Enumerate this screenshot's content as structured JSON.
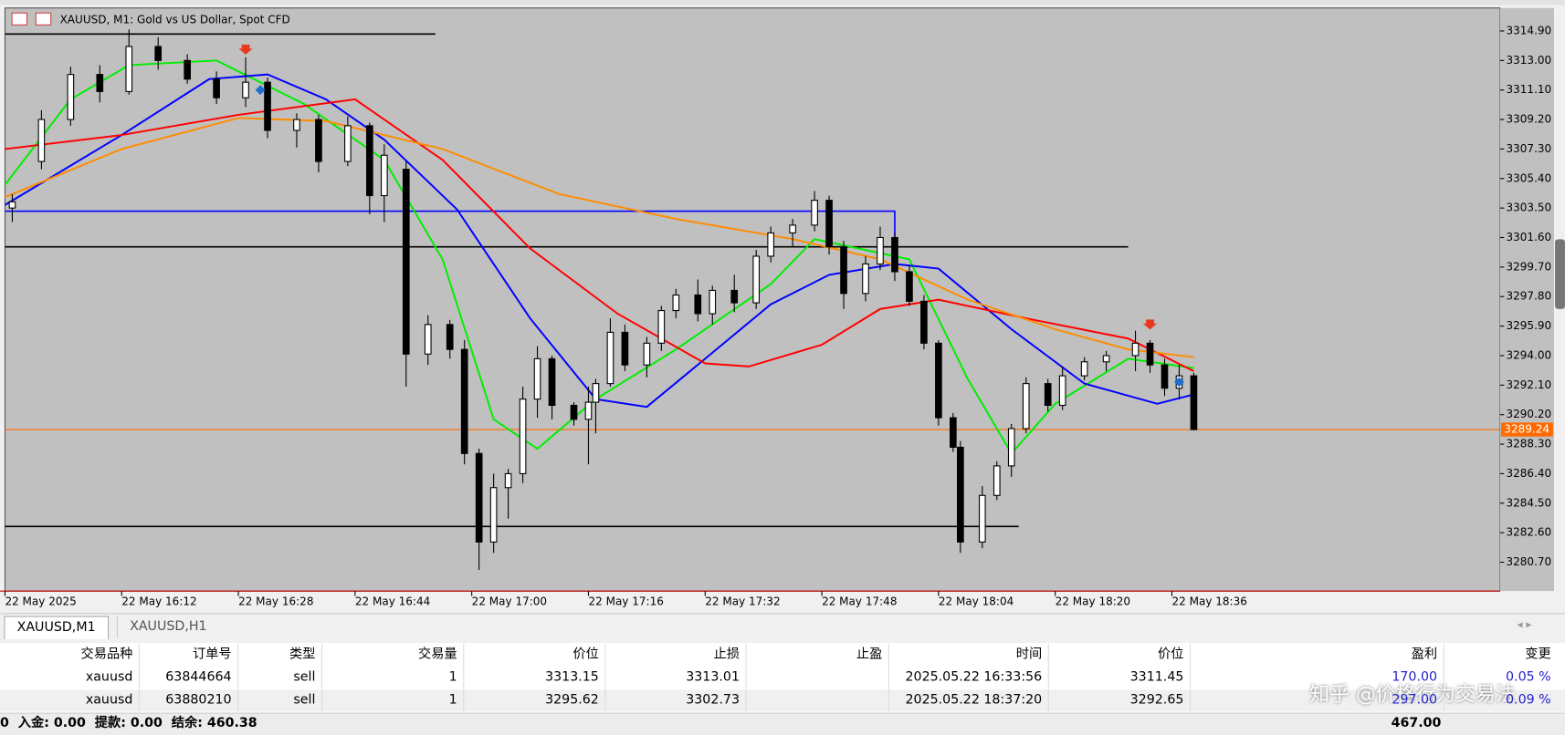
{
  "window": {
    "title": "XAUUSD, M1:  Gold vs US Dollar, Spot CFD"
  },
  "chart_data": {
    "type": "candlestick",
    "x": [
      "22 May 15:57",
      "22 May 16:01",
      "22 May 16:05",
      "22 May 16:09",
      "22 May 16:13",
      "22 May 16:17",
      "22 May 16:21",
      "22 May 16:25",
      "22 May 16:29",
      "22 May 16:32",
      "22 May 16:36",
      "22 May 16:39",
      "22 May 16:43",
      "22 May 16:46",
      "22 May 16:48",
      "22 May 16:51",
      "22 May 16:54",
      "22 May 16:57",
      "22 May 16:59",
      "22 May 17:01",
      "22 May 17:03",
      "22 May 17:05",
      "22 May 17:07",
      "22 May 17:09",
      "22 May 17:11",
      "22 May 17:14",
      "22 May 17:16",
      "22 May 17:17",
      "22 May 17:19",
      "22 May 17:21",
      "22 May 17:24",
      "22 May 17:26",
      "22 May 17:28",
      "22 May 17:31",
      "22 May 17:33",
      "22 May 17:36",
      "22 May 17:39",
      "22 May 17:41",
      "22 May 17:44",
      "22 May 17:47",
      "22 May 17:49",
      "22 May 17:51",
      "22 May 17:54",
      "22 May 17:56",
      "22 May 17:58",
      "22 May 18:00",
      "22 May 18:02",
      "22 May 18:04",
      "22 May 18:06",
      "22 May 18:07",
      "22 May 18:10",
      "22 May 18:12",
      "22 May 18:14",
      "22 May 18:16",
      "22 May 18:19",
      "22 May 18:21",
      "22 May 18:24",
      "22 May 18:27",
      "22 May 18:31",
      "22 May 18:33",
      "22 May 18:35",
      "22 May 18:37",
      "22 May 18:39"
    ],
    "open": [
      3303.5,
      3306.5,
      3309.2,
      3312.1,
      3311.0,
      3313.9,
      3313.0,
      3311.8,
      3310.6,
      3311.6,
      3308.5,
      3309.2,
      3306.5,
      3308.8,
      3304.3,
      3306.0,
      3294.1,
      3296.0,
      3294.4,
      3287.7,
      3282.0,
      3285.5,
      3286.4,
      3291.2,
      3293.8,
      3290.8,
      3289.9,
      3291.0,
      3292.2,
      3295.5,
      3293.4,
      3294.8,
      3296.9,
      3297.9,
      3296.7,
      3298.2,
      3297.4,
      3300.4,
      3301.9,
      3302.4,
      3304.0,
      3301.0,
      3298.0,
      3299.9,
      3301.6,
      3299.4,
      3297.5,
      3294.8,
      3290.0,
      3288.1,
      3282.0,
      3285.0,
      3286.9,
      3289.3,
      3292.2,
      3290.8,
      3292.7,
      3293.6,
      3294.0,
      3294.8,
      3293.4,
      3291.9,
      3292.7
    ],
    "high": [
      3304.4,
      3309.8,
      3312.6,
      3312.7,
      3315.0,
      3314.5,
      3313.4,
      3312.3,
      3313.2,
      3311.9,
      3309.6,
      3309.5,
      3309.4,
      3309.0,
      3307.6,
      3306.5,
      3296.6,
      3296.3,
      3295.0,
      3288.0,
      3286.4,
      3286.7,
      3292.0,
      3294.6,
      3294.0,
      3291.0,
      3292.0,
      3292.5,
      3296.4,
      3296.0,
      3295.2,
      3297.2,
      3298.3,
      3298.9,
      3298.5,
      3299.2,
      3300.8,
      3302.3,
      3302.8,
      3304.6,
      3304.3,
      3301.4,
      3300.4,
      3302.3,
      3301.9,
      3299.8,
      3297.9,
      3295.0,
      3290.3,
      3288.5,
      3285.6,
      3287.2,
      3289.6,
      3292.6,
      3292.5,
      3293.3,
      3293.9,
      3294.3,
      3295.6,
      3295.0,
      3293.8,
      3293.4,
      3292.9
    ],
    "low": [
      3302.6,
      3306.0,
      3308.8,
      3310.3,
      3310.8,
      3312.4,
      3311.5,
      3310.2,
      3310.0,
      3308.0,
      3307.4,
      3305.8,
      3306.2,
      3303.1,
      3302.6,
      3292.0,
      3293.4,
      3293.8,
      3287.0,
      3280.2,
      3281.3,
      3283.5,
      3285.8,
      3290.0,
      3289.9,
      3289.5,
      3287.0,
      3289.0,
      3292.0,
      3293.0,
      3292.6,
      3294.3,
      3296.4,
      3296.2,
      3296.0,
      3296.8,
      3297.0,
      3300.0,
      3301.0,
      3302.0,
      3300.5,
      3297.0,
      3297.5,
      3299.5,
      3298.8,
      3297.2,
      3294.4,
      3289.5,
      3287.8,
      3281.3,
      3281.6,
      3284.7,
      3286.2,
      3289.0,
      3290.4,
      3290.5,
      3292.4,
      3293.0,
      3293.0,
      3292.9,
      3291.4,
      3291.2,
      3289.2
    ],
    "close": [
      3303.9,
      3309.2,
      3312.1,
      3311.0,
      3313.9,
      3313.0,
      3311.8,
      3310.6,
      3311.6,
      3308.5,
      3309.2,
      3306.5,
      3308.8,
      3304.3,
      3306.9,
      3294.1,
      3296.0,
      3294.4,
      3287.7,
      3282.0,
      3285.5,
      3286.4,
      3291.2,
      3293.8,
      3290.8,
      3289.9,
      3291.0,
      3292.2,
      3295.5,
      3293.4,
      3294.8,
      3296.9,
      3297.9,
      3296.7,
      3298.2,
      3297.4,
      3300.4,
      3301.9,
      3302.4,
      3304.0,
      3301.0,
      3298.0,
      3299.9,
      3301.6,
      3299.4,
      3297.5,
      3294.8,
      3290.0,
      3288.1,
      3282.0,
      3285.0,
      3286.9,
      3289.3,
      3292.2,
      3290.8,
      3292.7,
      3293.6,
      3294.0,
      3294.8,
      3293.4,
      3291.9,
      3292.7,
      3289.24
    ],
    "series": [
      {
        "color": "#00ee00",
        "x": [
          "22 May 15:56",
          "22 May 16:05",
          "22 May 16:13",
          "22 May 16:25",
          "22 May 16:37",
          "22 May 16:48",
          "22 May 16:56",
          "22 May 17:03",
          "22 May 17:09",
          "22 May 17:17",
          "22 May 17:28",
          "22 May 17:41",
          "22 May 17:47",
          "22 May 18:00",
          "22 May 18:08",
          "22 May 18:14",
          "22 May 18:20",
          "22 May 18:30",
          "22 May 18:39"
        ],
        "values": [
          3305.0,
          3310.5,
          3312.7,
          3313.0,
          3310.2,
          3306.6,
          3300.2,
          3289.9,
          3288.0,
          3291.2,
          3294.4,
          3298.6,
          3301.5,
          3300.2,
          3292.5,
          3287.7,
          3290.9,
          3293.8,
          3293.2
        ]
      },
      {
        "color": "#0000ff",
        "x": [
          "22 May 15:56",
          "22 May 16:12",
          "22 May 16:24",
          "22 May 16:32",
          "22 May 16:40",
          "22 May 16:48",
          "22 May 16:58",
          "22 May 17:08",
          "22 May 17:17",
          "22 May 17:24",
          "22 May 17:32",
          "22 May 17:41",
          "22 May 17:49",
          "22 May 17:58",
          "22 May 18:04",
          "22 May 18:14",
          "22 May 18:24",
          "22 May 18:34",
          "22 May 18:39"
        ],
        "values": [
          3303.7,
          3308.2,
          3311.8,
          3312.1,
          3310.5,
          3307.9,
          3303.4,
          3296.4,
          3291.2,
          3290.7,
          3293.8,
          3297.3,
          3299.2,
          3299.9,
          3299.6,
          3295.7,
          3292.2,
          3290.9,
          3291.5
        ]
      },
      {
        "color": "#ff0000",
        "x": [
          "22 May 15:56",
          "22 May 16:12",
          "22 May 16:28",
          "22 May 16:44",
          "22 May 16:56",
          "22 May 17:08",
          "22 May 17:20",
          "22 May 17:32",
          "22 May 17:38",
          "22 May 17:48",
          "22 May 17:56",
          "22 May 18:04",
          "22 May 18:16",
          "22 May 18:30",
          "22 May 18:39"
        ],
        "values": [
          3307.3,
          3308.2,
          3309.5,
          3310.5,
          3306.6,
          3300.9,
          3296.7,
          3293.5,
          3293.3,
          3294.7,
          3297.0,
          3297.6,
          3296.4,
          3295.1,
          3293.0
        ]
      },
      {
        "color": "#ff8c00",
        "x": [
          "22 May 15:56",
          "22 May 16:12",
          "22 May 16:28",
          "22 May 16:40",
          "22 May 16:56",
          "22 May 17:12",
          "22 May 17:28",
          "22 May 17:44",
          "22 May 17:56",
          "22 May 18:08",
          "22 May 18:20",
          "22 May 18:30",
          "22 May 18:39"
        ],
        "values": [
          3304.2,
          3307.3,
          3309.3,
          3309.1,
          3307.3,
          3304.4,
          3302.8,
          3301.5,
          3300.2,
          3297.6,
          3295.7,
          3294.4,
          3293.9
        ]
      }
    ],
    "levels": [
      {
        "value": 3314.7,
        "from": "22 May 15:56",
        "to": "22 May 16:55",
        "color": "#000000"
      },
      {
        "value": 3301.0,
        "from": "22 May 15:56",
        "to": "22 May 18:30",
        "color": "#000000"
      },
      {
        "value": 3283.0,
        "from": "22 May 15:56",
        "to": "22 May 18:15",
        "color": "#000000"
      }
    ],
    "box": {
      "top": 3303.3,
      "bottom": 3301.0,
      "from": "22 May 15:56",
      "to": "22 May 17:58",
      "color": "#0000ff"
    },
    "markers": [
      {
        "x": "22 May 16:29",
        "value": 3313.7,
        "color": "#e8391e",
        "shape": "arrow"
      },
      {
        "x": "22 May 16:31",
        "value": 3311.1,
        "color": "#1e6fd0",
        "shape": "diamond"
      },
      {
        "x": "22 May 18:33",
        "value": 3296.0,
        "color": "#e8391e",
        "shape": "arrow"
      },
      {
        "x": "22 May 18:37",
        "value": 3292.3,
        "color": "#1e6fd0",
        "shape": "diamond"
      }
    ],
    "price_line_color": "#ff6a00",
    "background": "#c0c0c0",
    "ylim": [
      3278.84,
      3316.38
    ],
    "yticks": [
      {
        "value": 3280.7,
        "label": "3280.70"
      },
      {
        "value": 3282.6,
        "label": "3282.60"
      },
      {
        "value": 3284.5,
        "label": "3284.50"
      },
      {
        "value": 3286.4,
        "label": "3286.40"
      },
      {
        "value": 3288.3,
        "label": "3288.30"
      },
      {
        "value": 3290.2,
        "label": "3290.20"
      },
      {
        "value": 3292.1,
        "label": "3292.10"
      },
      {
        "value": 3294,
        "label": "3294.00"
      },
      {
        "value": 3295.9,
        "label": "3295.90"
      },
      {
        "value": 3297.8,
        "label": "3297.80"
      },
      {
        "value": 3299.7,
        "label": "3299.70"
      },
      {
        "value": 3301.6,
        "label": "3301.60"
      },
      {
        "value": 3303.5,
        "label": "3303.50"
      },
      {
        "value": 3305.4,
        "label": "3305.40"
      },
      {
        "value": 3307.3,
        "label": "3307.30"
      },
      {
        "value": 3309.2,
        "label": "3309.20"
      },
      {
        "value": 3311.1,
        "label": "3311.10"
      },
      {
        "value": 3313,
        "label": "3313.00"
      },
      {
        "value": 3314.9,
        "label": "3314.90"
      }
    ],
    "xlim": [
      "22 May 15:56",
      "22 May 19:21"
    ],
    "xticks": [
      {
        "value": "22 May 15:56",
        "label": "22 May 2025"
      },
      "22 May 16:12",
      "22 May 16:28",
      "22 May 16:44",
      "22 May 17:00",
      "22 May 17:16",
      "22 May 17:32",
      "22 May 17:48",
      "22 May 18:04",
      "22 May 18:20",
      "22 May 18:36"
    ]
  },
  "tabs": [
    "XAUUSD,M1",
    "XAUUSD,H1"
  ],
  "table": {
    "header": [
      "交易品种",
      "订单号",
      "类型",
      "交易量",
      "价位",
      "止损",
      "止盈",
      "时间",
      "价位",
      "盈利",
      "变更"
    ],
    "rows": [
      [
        "xauusd",
        "63844664",
        "sell",
        "1",
        "3313.15",
        "3313.01",
        null,
        "2025.05.22 16:33:56",
        "3311.45",
        "170.00",
        "0.05 %"
      ],
      [
        "xauusd",
        "63880210",
        "sell",
        "1",
        "3295.62",
        "3302.73",
        null,
        "2025.05.22 18:37:20",
        "3292.65",
        "297.00",
        "0.09 %"
      ]
    ]
  },
  "footer": {
    "left": "0  入金: 0.00  提款: 0.00  结余: 460.38",
    "total": "467.00"
  },
  "watermark": "知乎 @价格行为交易法"
}
